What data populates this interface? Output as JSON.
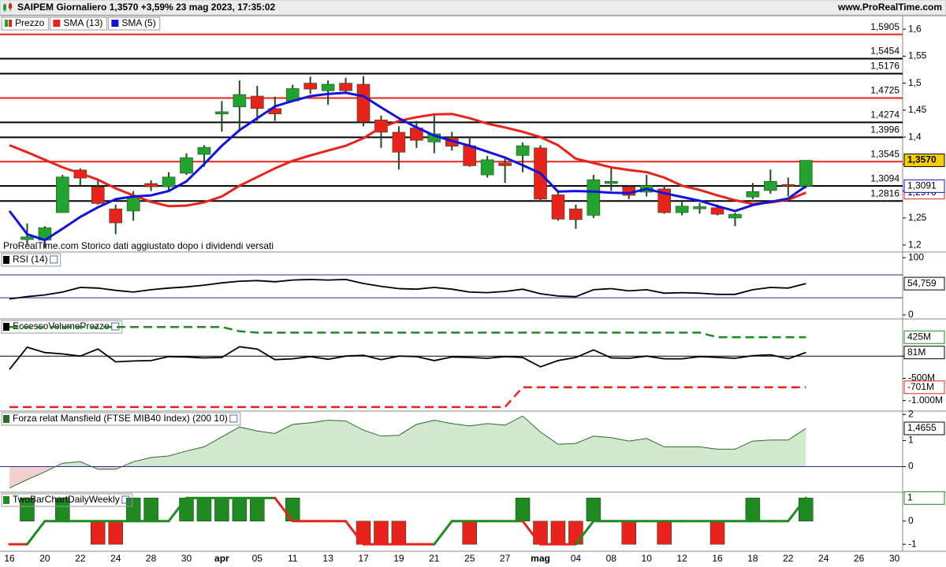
{
  "chart_data": [
    {
      "type": "candlestick",
      "title": "SAIPEM Giornaliero 1,3570 +3,59% 23 mag 2023, 17:35:02",
      "source": "www.ProRealTime.com",
      "note": "ProRealTime.com Storico dati aggiustato dopo i dividendi versati",
      "categories": [
        "16",
        null,
        "20",
        null,
        "22",
        null,
        "24",
        null,
        "28",
        null,
        "30",
        null,
        "apr",
        null,
        "05",
        null,
        "11",
        null,
        "13",
        null,
        "17",
        null,
        "19",
        null,
        "21",
        null,
        "25",
        null,
        "27",
        null,
        "mag",
        null,
        "04",
        null,
        "08",
        null,
        "10",
        null,
        "12",
        null,
        "16",
        null,
        "18",
        null,
        "22",
        null,
        "24",
        null,
        "26",
        null,
        "30"
      ],
      "series": [
        {
          "name": "Prezzo",
          "up_color": "#22a32e",
          "down_color": "#e8231b",
          "wick_color": "#1d4f1d",
          "open": [
            null,
            1.21,
            1.209,
            1.26,
            1.339,
            1.308,
            1.267,
            1.263,
            1.314,
            1.308,
            1.333,
            1.368,
            1.443,
            1.456,
            1.476,
            1.453,
            1.467,
            1.5,
            1.486,
            1.5,
            1.498,
            1.432,
            1.409,
            1.417,
            1.391,
            1.399,
            1.384,
            1.33,
            1.352,
            1.366,
            1.38,
            1.293,
            1.267,
            1.255,
            1.314,
            1.308,
            1.298,
            1.304,
            1.26,
            1.267,
            1.269,
            1.25,
            1.289,
            1.301,
            1.312,
            1.309,
            null,
            null,
            null,
            null,
            null
          ],
          "high": [
            null,
            1.24,
            1.235,
            1.33,
            1.342,
            1.32,
            1.275,
            1.3,
            1.32,
            1.335,
            1.37,
            1.385,
            1.467,
            1.505,
            1.495,
            1.475,
            1.497,
            1.512,
            1.505,
            1.51,
            1.513,
            1.44,
            1.42,
            1.43,
            1.44,
            1.41,
            1.4,
            1.365,
            1.36,
            1.39,
            1.385,
            1.3,
            1.275,
            1.33,
            1.345,
            1.31,
            1.33,
            1.31,
            1.28,
            1.278,
            1.275,
            1.26,
            1.315,
            1.34,
            1.325,
            1.357,
            null,
            null,
            null,
            null,
            null
          ],
          "low": [
            null,
            1.2,
            1.195,
            1.26,
            1.31,
            1.275,
            1.22,
            1.245,
            1.3,
            1.3,
            1.33,
            1.345,
            1.41,
            1.41,
            1.43,
            1.43,
            1.465,
            1.48,
            1.46,
            1.48,
            1.42,
            1.38,
            1.34,
            1.38,
            1.37,
            1.375,
            1.345,
            1.325,
            1.315,
            1.335,
            1.28,
            1.245,
            1.23,
            1.25,
            1.3,
            1.285,
            1.29,
            1.258,
            1.255,
            1.258,
            1.255,
            1.235,
            1.285,
            1.295,
            1.29,
            1.305,
            null,
            null,
            null,
            null,
            null
          ],
          "close": [
            null,
            1.215,
            1.232,
            1.326,
            1.324,
            1.277,
            1.241,
            1.289,
            1.308,
            1.326,
            1.362,
            1.381,
            1.447,
            1.479,
            1.453,
            1.443,
            1.49,
            1.489,
            1.498,
            1.486,
            1.428,
            1.409,
            1.372,
            1.394,
            1.406,
            1.383,
            1.347,
            1.358,
            1.347,
            1.384,
            1.285,
            1.248,
            1.247,
            1.321,
            1.318,
            1.292,
            1.31,
            1.26,
            1.272,
            1.271,
            1.257,
            1.257,
            1.299,
            1.318,
            1.31,
            1.357,
            null,
            null,
            null,
            null,
            null
          ],
          "last_label": "1,3570"
        },
        {
          "name": "SMA (13)",
          "color": "#e8231b",
          "values": [
            1.385,
            1.372,
            1.358,
            1.344,
            1.333,
            1.321,
            1.305,
            1.292,
            1.28,
            1.272,
            1.273,
            1.279,
            1.29,
            1.31,
            1.326,
            1.342,
            1.356,
            1.366,
            1.375,
            1.384,
            1.398,
            1.418,
            1.43,
            1.437,
            1.442,
            1.443,
            1.435,
            1.425,
            1.418,
            1.41,
            1.4,
            1.385,
            1.36,
            1.352,
            1.344,
            1.339,
            1.335,
            1.325,
            1.31,
            1.302,
            1.292,
            1.283,
            1.276,
            1.279,
            1.284,
            1.297,
            null,
            null,
            null,
            null,
            null
          ],
          "last_label": "1,2970"
        },
        {
          "name": "SMA (5)",
          "color": "#1212e0",
          "values": [
            1.263,
            1.22,
            1.209,
            1.23,
            1.252,
            1.27,
            1.285,
            1.29,
            1.292,
            1.3,
            1.318,
            1.35,
            1.384,
            1.413,
            1.435,
            1.457,
            1.467,
            1.476,
            1.48,
            1.482,
            1.476,
            1.455,
            1.435,
            1.418,
            1.403,
            1.393,
            1.384,
            1.373,
            1.362,
            1.348,
            1.333,
            1.299,
            1.3,
            1.299,
            1.297,
            1.296,
            1.304,
            1.296,
            1.289,
            1.282,
            1.272,
            1.263,
            1.274,
            1.28,
            1.286,
            1.3091,
            null,
            null,
            null,
            null,
            null
          ],
          "last_label": "1,3091"
        }
      ],
      "levels": [
        {
          "value": 1.5905,
          "label": "1,5905",
          "color": "#e8231b"
        },
        {
          "value": 1.5454,
          "label": "1,5454",
          "color": "#000000"
        },
        {
          "value": 1.5176,
          "label": "1,5176",
          "color": "#000000"
        },
        {
          "value": 1.4725,
          "label": "1,4725",
          "color": "#e8231b"
        },
        {
          "value": 1.4274,
          "label": "1,4274",
          "color": "#000000"
        },
        {
          "value": 1.3996,
          "label": "1,3996",
          "color": "#000000"
        },
        {
          "value": 1.3545,
          "label": "1,3545",
          "color": "#e8231b"
        },
        {
          "value": 1.3094,
          "label": "1,3094",
          "color": "#000000"
        },
        {
          "value": 1.2816,
          "label": "1,2816",
          "color": "#000000"
        }
      ],
      "ylim": [
        1.187,
        1.625
      ],
      "yticks": [
        {
          "value": 1.6,
          "label": "1,6"
        },
        {
          "value": 1.55,
          "label": "1,55"
        },
        {
          "value": 1.5,
          "label": "1,5"
        },
        {
          "value": 1.45,
          "label": "1,45"
        },
        {
          "value": 1.4,
          "label": "1,4"
        },
        {
          "value": 1.35,
          "label": "1,35"
        },
        {
          "value": 1.3,
          "label": "1,3"
        },
        {
          "value": 1.25,
          "label": "1,25"
        },
        {
          "value": 1.2,
          "label": "1,2"
        }
      ]
    },
    {
      "type": "line",
      "title": "RSI (14)",
      "color": "#000000",
      "values": [
        28,
        32,
        35,
        40,
        48,
        47,
        43,
        40,
        44,
        47,
        49,
        52,
        56,
        59,
        60,
        58,
        61,
        62,
        61,
        62,
        55,
        50,
        46,
        45,
        48,
        45,
        40,
        39,
        41,
        45,
        37,
        33,
        32,
        44,
        46,
        42,
        44,
        38,
        39,
        38,
        36,
        36,
        44,
        48,
        47,
        54.759,
        null,
        null,
        null,
        null,
        null
      ],
      "last_label": "54,759",
      "levels": [
        70,
        30
      ],
      "level_color": "#2b2b9e",
      "ylim": [
        -7,
        110
      ],
      "yticks": [
        0,
        100
      ]
    },
    {
      "type": "line",
      "title": "EccessoVolumePrezzo",
      "baseline_color": "#000000",
      "series": [
        {
          "color": "#000000",
          "dash": false,
          "last_label": "81M",
          "values": [
            -300,
            200,
            80,
            50,
            0,
            160,
            -130,
            -110,
            -100,
            -10,
            -20,
            -40,
            -30,
            210,
            160,
            -80,
            -60,
            -10,
            -70,
            0,
            20,
            -80,
            0,
            -10,
            -100,
            -20,
            -30,
            -50,
            -10,
            -30,
            -240,
            -100,
            -30,
            140,
            -40,
            -50,
            0,
            -60,
            -60,
            -10,
            -30,
            -50,
            10,
            30,
            -60,
            81,
            null,
            null,
            null,
            null,
            null
          ]
        },
        {
          "color": "#1f8a1f",
          "dash": true,
          "last_label": "425M",
          "values": [
            655,
            655,
            655,
            655,
            655,
            655,
            655,
            655,
            655,
            655,
            655,
            655,
            655,
            560,
            527,
            527,
            527,
            527,
            527,
            527,
            527,
            527,
            527,
            527,
            527,
            527,
            527,
            527,
            527,
            527,
            527,
            527,
            527,
            527,
            527,
            527,
            527,
            527,
            527,
            527,
            425,
            425,
            425,
            425,
            425,
            425,
            null,
            null,
            null,
            null,
            null
          ]
        },
        {
          "color": "#e8231b",
          "dash": true,
          "last_label": "-701M",
          "values": [
            -1145,
            -1145,
            -1145,
            -1145,
            -1145,
            -1145,
            -1145,
            -1145,
            -1145,
            -1145,
            -1145,
            -1145,
            -1145,
            -1145,
            -1145,
            -1145,
            -1145,
            -1145,
            -1145,
            -1145,
            -1145,
            -1145,
            -1145,
            -1145,
            -1145,
            -1145,
            -1145,
            -1145,
            -1145,
            -701,
            -701,
            -701,
            -701,
            -701,
            -701,
            -701,
            -701,
            -701,
            -701,
            -701,
            -701,
            -701,
            -701,
            -701,
            -701,
            -701,
            null,
            null,
            null,
            null,
            null
          ]
        }
      ],
      "ylim": [
        -1236,
        836
      ],
      "yticks": [
        {
          "value": -1000,
          "label": "-1.000M"
        },
        {
          "value": -500,
          "label": "-500M"
        },
        0
      ]
    },
    {
      "type": "area",
      "title": "Forza relat Mansfield (FTSE MIB40 Index) (200 10)",
      "color": "#2a6a2a",
      "fill": "#d3e9cf",
      "neg_fill": "#f1d0d0",
      "baseline_color": "#2b2b9e",
      "values": [
        -0.82,
        -0.5,
        -0.2,
        0.13,
        0.19,
        -0.1,
        -0.1,
        0.19,
        0.35,
        0.41,
        0.6,
        0.76,
        1.14,
        1.52,
        1.37,
        1.27,
        1.62,
        1.68,
        1.78,
        1.75,
        1.4,
        1.17,
        1.2,
        1.62,
        1.78,
        1.65,
        1.56,
        1.65,
        1.59,
        1.94,
        1.33,
        0.86,
        0.89,
        1.17,
        1.11,
        0.98,
        1.08,
        0.76,
        0.76,
        0.76,
        0.67,
        0.67,
        0.98,
        1.02,
        1.02,
        1.4655,
        null,
        null,
        null,
        null,
        null
      ],
      "last_label": "1,4655",
      "ylim": [
        -0.98,
        2.13
      ],
      "yticks": [
        0,
        1,
        2
      ]
    },
    {
      "type": "bar",
      "title": "TwoBarChartDailyWeekly",
      "up_color": "#1f8a1f",
      "down_color": "#e8231b",
      "values": [
        null,
        1,
        null,
        1,
        null,
        -1,
        -1,
        1,
        1,
        null,
        1,
        1,
        1,
        1,
        1,
        null,
        1,
        null,
        null,
        null,
        -1,
        -1,
        -1,
        null,
        null,
        null,
        -1,
        null,
        null,
        1,
        -1,
        -1,
        -1,
        1,
        null,
        -1,
        null,
        -1,
        null,
        null,
        -1,
        null,
        1,
        null,
        null,
        1,
        null,
        null,
        null,
        null,
        null
      ],
      "line": [
        -1,
        -1,
        0,
        0,
        0,
        0,
        0,
        0,
        0,
        0,
        1,
        1,
        1,
        1,
        1,
        1,
        0,
        0,
        0,
        0,
        -1,
        -1,
        -1,
        -1,
        -1,
        0,
        0,
        0,
        0,
        0,
        -1,
        -1,
        -1,
        0,
        0,
        0,
        0,
        0,
        0,
        0,
        0,
        0,
        0,
        0,
        0,
        1,
        null,
        null,
        null,
        null,
        null
      ],
      "ylim": [
        -1.3,
        1.25
      ],
      "yticks": [
        0,
        -1
      ]
    }
  ]
}
